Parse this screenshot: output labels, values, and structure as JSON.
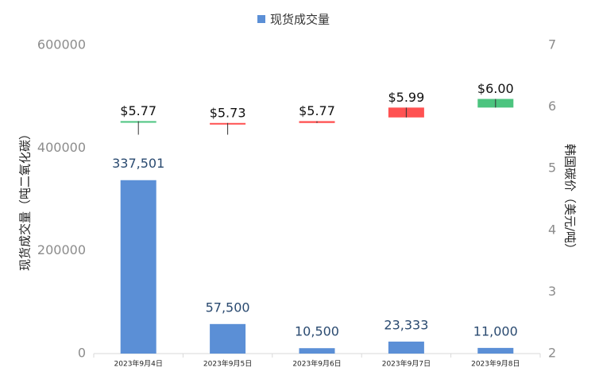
{
  "chart_data": {
    "type": "bar",
    "categories": [
      "2023年9月4日",
      "2023年9月5日",
      "2023年9月6日",
      "2023年9月7日",
      "2023年9月8日"
    ],
    "series": [
      {
        "name": "现货成交量",
        "color": "#5b8fd6",
        "values": [
          337501,
          57500,
          10500,
          23333,
          11000
        ],
        "value_labels": [
          "337,501",
          "57,500",
          "10,500",
          "23,333",
          "11,000"
        ]
      },
      {
        "type": "candlestick",
        "axis": "y2",
        "up_color": "#4cc47f",
        "down_color": "#ff5252",
        "values": [
          5.77,
          5.73,
          5.77,
          5.99,
          6.0
        ],
        "value_labels": [
          "$5.77",
          "$5.73",
          "$5.77",
          "$5.99",
          "$6.00"
        ],
        "open": [
          5.75,
          5.74,
          5.77,
          5.99,
          5.99
        ],
        "close": [
          5.77,
          5.73,
          5.74,
          5.83,
          6.13
        ],
        "high": [
          5.77,
          5.74,
          5.77,
          5.99,
          6.13
        ],
        "low": [
          5.55,
          5.55,
          5.74,
          5.83,
          5.99
        ]
      }
    ],
    "ylabel": "现货成交量（吨二氧化碳）",
    "y2label": "韩国碳价（美元/吨）",
    "ylim": [
      0,
      600000
    ],
    "yticks": [
      0,
      200000,
      400000,
      600000
    ],
    "y2lim": [
      2,
      7
    ],
    "y2ticks": [
      2,
      3,
      4,
      5,
      6,
      7
    ],
    "legend": "top"
  }
}
